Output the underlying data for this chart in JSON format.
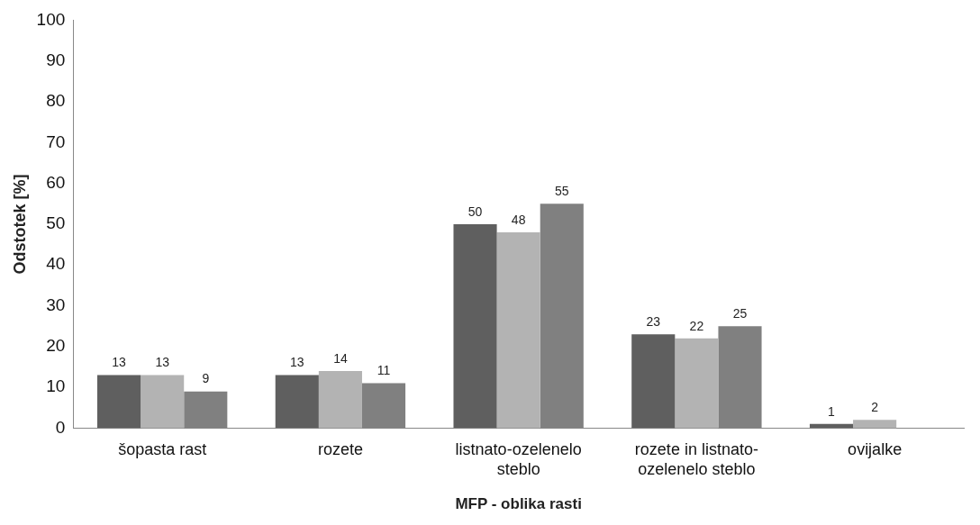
{
  "chart_data": {
    "type": "bar",
    "xlabel": "MFP - oblika rasti",
    "ylabel": "Odstotek [%]",
    "categories": [
      "šopasta rast",
      "rozete",
      "listnato-ozelenelo steblo",
      "rozete in listnato-ozelenelo steblo",
      "ovijalke"
    ],
    "series": [
      {
        "color": "#5f5f5f",
        "values": [
          13,
          13,
          50,
          23,
          1
        ]
      },
      {
        "color": "#b3b3b3",
        "values": [
          13,
          14,
          48,
          22,
          2
        ]
      },
      {
        "color": "#808080",
        "values": [
          9,
          11,
          55,
          25,
          null
        ]
      }
    ],
    "ylim": [
      0,
      100
    ],
    "yticks": [
      0,
      10,
      20,
      30,
      40,
      50,
      60,
      70,
      80,
      90,
      100
    ],
    "grid": false,
    "legend": false,
    "data_labels": true
  }
}
